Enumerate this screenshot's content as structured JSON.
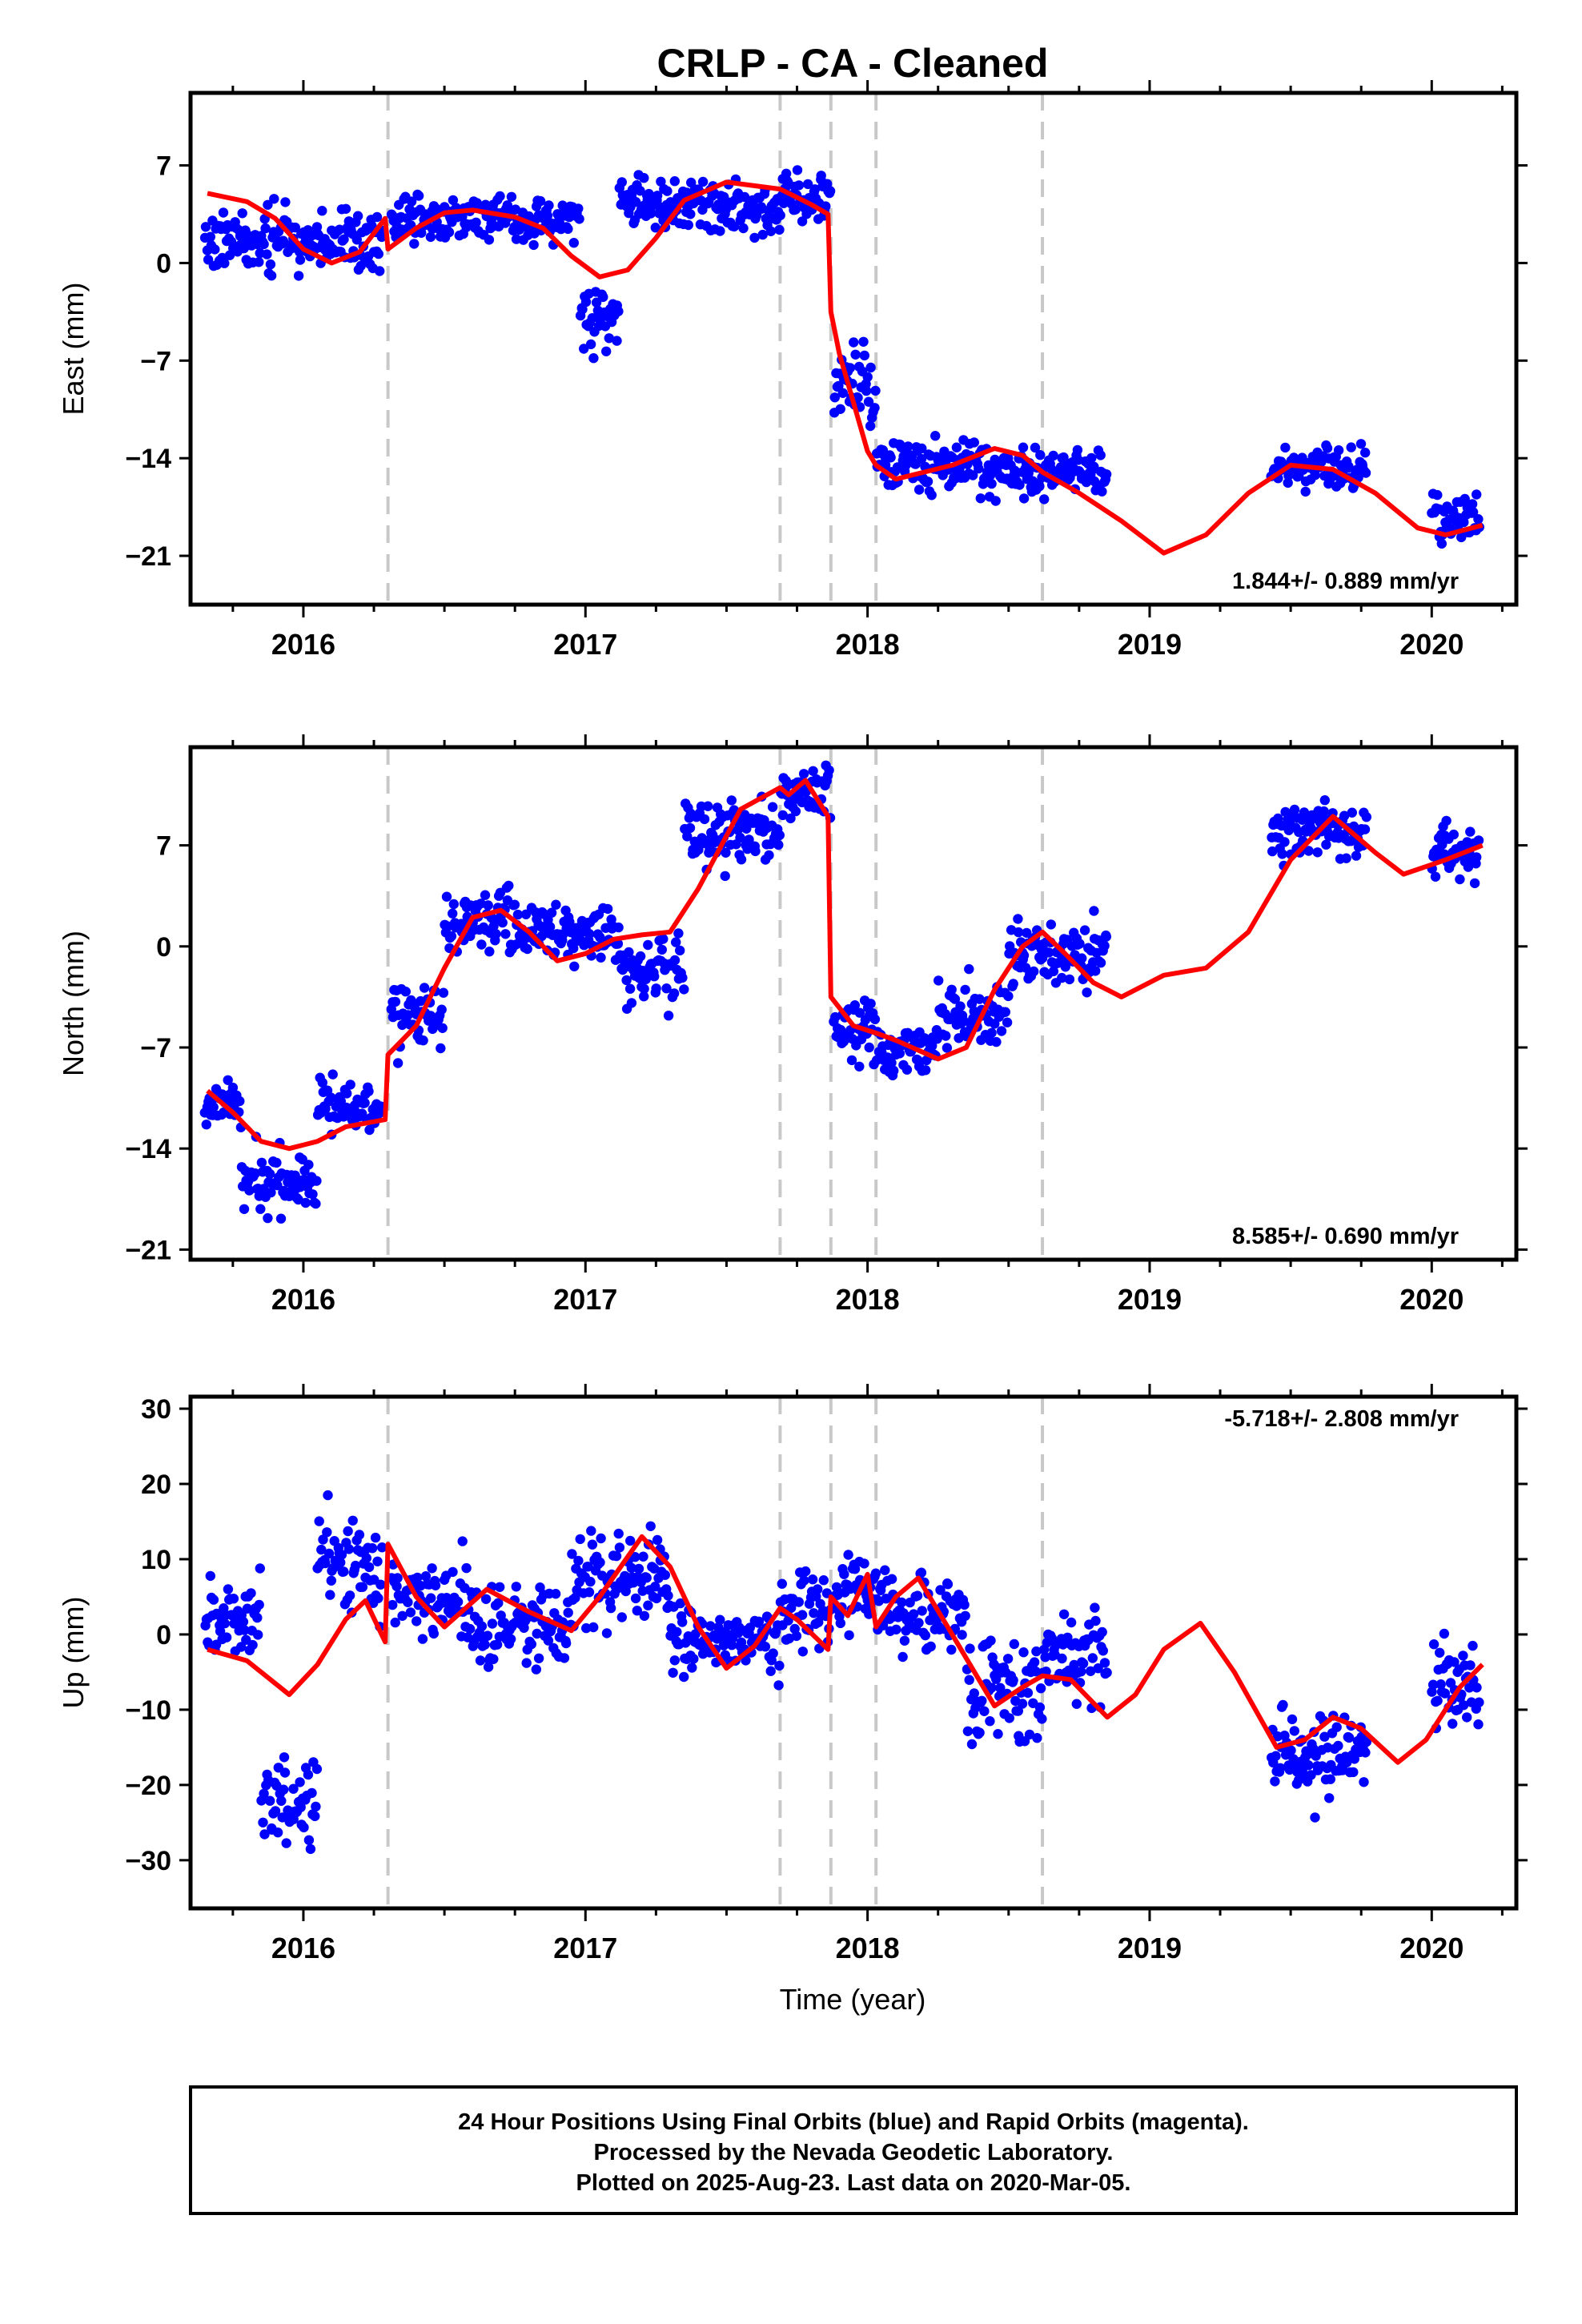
{
  "title": "CRLP  - CA - Cleaned",
  "xlabel": "Time (year)",
  "footer": {
    "line1": "24 Hour Positions Using Final Orbits (blue) and Rapid Orbits (magenta).",
    "line2": "Processed by the Nevada Geodetic Laboratory.",
    "line3": "Plotted on 2025-Aug-23. Last data on 2020-Mar-05."
  },
  "colors": {
    "points": "#0000ff",
    "model": "#ff0000",
    "breaks": "#c8c8c8"
  },
  "chart_data": [
    {
      "type": "scatter",
      "component": "east",
      "ylabel": "East (mm)",
      "rate_text": "1.844+/- 0.889 mm/yr",
      "xlim": [
        2015.6,
        2020.3
      ],
      "ylim": [
        -24.5,
        12.2
      ],
      "xticks": [
        2016,
        2017,
        2018,
        2019,
        2020
      ],
      "yticks": [
        -21,
        -14,
        -7,
        0,
        7
      ],
      "ytick_labels": [
        "−21",
        "−14",
        "−7",
        "0",
        "7"
      ],
      "breaks": [
        2016.3,
        2017.69,
        2017.87,
        2018.03,
        2018.62
      ],
      "model": [
        [
          2015.66,
          5.0
        ],
        [
          2015.8,
          4.4
        ],
        [
          2015.9,
          3.2
        ],
        [
          2016.0,
          1.0
        ],
        [
          2016.1,
          0.0
        ],
        [
          2016.2,
          0.8
        ],
        [
          2016.29,
          3.2
        ],
        [
          2016.3,
          1.0
        ],
        [
          2016.4,
          2.5
        ],
        [
          2016.5,
          3.6
        ],
        [
          2016.6,
          3.8
        ],
        [
          2016.75,
          3.3
        ],
        [
          2016.85,
          2.5
        ],
        [
          2016.95,
          0.5
        ],
        [
          2017.05,
          -1.0
        ],
        [
          2017.15,
          -0.5
        ],
        [
          2017.25,
          1.8
        ],
        [
          2017.35,
          4.5
        ],
        [
          2017.5,
          5.8
        ],
        [
          2017.69,
          5.3
        ],
        [
          2017.8,
          4.2
        ],
        [
          2017.86,
          3.5
        ],
        [
          2017.87,
          -3.5
        ],
        [
          2017.9,
          -6.5
        ],
        [
          2017.95,
          -10.0
        ],
        [
          2018.0,
          -13.5
        ],
        [
          2018.03,
          -14.5
        ],
        [
          2018.1,
          -15.5
        ],
        [
          2018.2,
          -15.0
        ],
        [
          2018.3,
          -14.5
        ],
        [
          2018.45,
          -13.3
        ],
        [
          2018.55,
          -13.8
        ],
        [
          2018.62,
          -15.0
        ],
        [
          2018.75,
          -16.5
        ],
        [
          2018.9,
          -18.5
        ],
        [
          2019.05,
          -20.8
        ],
        [
          2019.2,
          -19.5
        ],
        [
          2019.35,
          -16.5
        ],
        [
          2019.5,
          -14.5
        ],
        [
          2019.65,
          -14.8
        ],
        [
          2019.8,
          -16.5
        ],
        [
          2019.95,
          -19.0
        ],
        [
          2020.05,
          -19.5
        ],
        [
          2020.18,
          -18.8
        ]
      ],
      "segments": [
        [
          2015.65,
          2016.28,
          1.5,
          2.8
        ],
        [
          2016.31,
          2016.98,
          3.2,
          2.0
        ],
        [
          2016.98,
          2017.12,
          -3.5,
          3.5
        ],
        [
          2017.12,
          2017.69,
          4.0,
          2.5
        ],
        [
          2017.69,
          2017.87,
          4.8,
          2.0
        ],
        [
          2017.88,
          2018.03,
          -9.0,
          4.5
        ],
        [
          2018.03,
          2018.4,
          -14.5,
          2.2
        ],
        [
          2018.4,
          2018.85,
          -15.0,
          2.2
        ],
        [
          2019.43,
          2019.77,
          -14.8,
          2.0
        ],
        [
          2020.0,
          2020.17,
          -18.3,
          2.0
        ]
      ]
    },
    {
      "type": "scatter",
      "component": "north",
      "ylabel": "North (mm)",
      "rate_text": "8.585+/- 0.690 mm/yr",
      "xlim": [
        2015.6,
        2020.3
      ],
      "ylim": [
        -21.7,
        13.8
      ],
      "xticks": [
        2016,
        2017,
        2018,
        2019,
        2020
      ],
      "yticks": [
        -21,
        -14,
        -7,
        0,
        7
      ],
      "ytick_labels": [
        "−21",
        "−14",
        "−7",
        "0",
        "7"
      ],
      "breaks": [
        2016.3,
        2017.69,
        2017.87,
        2018.03,
        2018.62
      ],
      "model": [
        [
          2015.66,
          -10.0
        ],
        [
          2015.75,
          -11.5
        ],
        [
          2015.85,
          -13.5
        ],
        [
          2015.95,
          -14.0
        ],
        [
          2016.05,
          -13.5
        ],
        [
          2016.15,
          -12.5
        ],
        [
          2016.29,
          -12.0
        ],
        [
          2016.3,
          -7.5
        ],
        [
          2016.4,
          -5.5
        ],
        [
          2016.5,
          -1.5
        ],
        [
          2016.6,
          2.0
        ],
        [
          2016.7,
          2.5
        ],
        [
          2016.8,
          1.0
        ],
        [
          2016.9,
          -1.0
        ],
        [
          2017.0,
          -0.5
        ],
        [
          2017.1,
          0.5
        ],
        [
          2017.2,
          0.8
        ],
        [
          2017.3,
          1.0
        ],
        [
          2017.4,
          4.0
        ],
        [
          2017.55,
          9.5
        ],
        [
          2017.69,
          11.0
        ],
        [
          2017.72,
          10.5
        ],
        [
          2017.78,
          11.5
        ],
        [
          2017.86,
          9.0
        ],
        [
          2017.87,
          -3.5
        ],
        [
          2017.95,
          -5.5
        ],
        [
          2018.03,
          -6.0
        ],
        [
          2018.1,
          -6.5
        ],
        [
          2018.25,
          -7.8
        ],
        [
          2018.35,
          -7.0
        ],
        [
          2018.45,
          -3.0
        ],
        [
          2018.55,
          0.0
        ],
        [
          2018.62,
          1.0
        ],
        [
          2018.7,
          -0.5
        ],
        [
          2018.8,
          -2.5
        ],
        [
          2018.9,
          -3.5
        ],
        [
          2019.05,
          -2.0
        ],
        [
          2019.2,
          -1.5
        ],
        [
          2019.35,
          1.0
        ],
        [
          2019.5,
          6.0
        ],
        [
          2019.65,
          9.0
        ],
        [
          2019.8,
          6.5
        ],
        [
          2019.9,
          5.0
        ],
        [
          2020.05,
          6.0
        ],
        [
          2020.18,
          7.0
        ]
      ],
      "segments": [
        [
          2015.65,
          2015.78,
          -10.8,
          2.0
        ],
        [
          2015.78,
          2016.05,
          -15.8,
          3.0
        ],
        [
          2016.05,
          2016.28,
          -11.0,
          2.5
        ],
        [
          2016.31,
          2016.5,
          -5.0,
          3.0
        ],
        [
          2016.5,
          2016.8,
          1.8,
          3.0
        ],
        [
          2016.8,
          2017.12,
          1.0,
          3.0
        ],
        [
          2017.12,
          2017.35,
          -1.5,
          3.0
        ],
        [
          2017.35,
          2017.69,
          8.0,
          3.0
        ],
        [
          2017.69,
          2017.87,
          10.5,
          2.5
        ],
        [
          2017.88,
          2018.03,
          -5.5,
          3.0
        ],
        [
          2018.03,
          2018.25,
          -7.0,
          2.5
        ],
        [
          2018.25,
          2018.5,
          -4.5,
          3.0
        ],
        [
          2018.5,
          2018.85,
          -0.5,
          3.0
        ],
        [
          2019.43,
          2019.77,
          8.0,
          2.5
        ],
        [
          2020.0,
          2020.17,
          6.5,
          2.5
        ]
      ]
    },
    {
      "type": "scatter",
      "component": "up",
      "ylabel": "Up (mm)",
      "rate_text": "-5.718+/- 2.808 mm/yr",
      "xlim": [
        2015.6,
        2020.3
      ],
      "ylim": [
        -36.4,
        31.6
      ],
      "xticks": [
        2016,
        2017,
        2018,
        2019,
        2020
      ],
      "yticks": [
        -30,
        -20,
        -10,
        0,
        10,
        20,
        30
      ],
      "ytick_labels": [
        "−30",
        "−20",
        "−10",
        "0",
        "10",
        "20",
        "30"
      ],
      "breaks": [
        2016.3,
        2017.69,
        2017.87,
        2018.03,
        2018.62
      ],
      "model": [
        [
          2015.66,
          -2.0
        ],
        [
          2015.8,
          -3.5
        ],
        [
          2015.95,
          -8.0
        ],
        [
          2016.05,
          -4.0
        ],
        [
          2016.15,
          2.0
        ],
        [
          2016.22,
          4.5
        ],
        [
          2016.29,
          -1.0
        ],
        [
          2016.3,
          12.0
        ],
        [
          2016.4,
          5.0
        ],
        [
          2016.5,
          1.0
        ],
        [
          2016.65,
          6.0
        ],
        [
          2016.8,
          3.0
        ],
        [
          2016.95,
          0.5
        ],
        [
          2017.05,
          5.0
        ],
        [
          2017.2,
          13.0
        ],
        [
          2017.3,
          9.0
        ],
        [
          2017.4,
          1.0
        ],
        [
          2017.5,
          -4.5
        ],
        [
          2017.6,
          -1.5
        ],
        [
          2017.69,
          3.5
        ],
        [
          2017.75,
          2.0
        ],
        [
          2017.86,
          -2.0
        ],
        [
          2017.87,
          5.0
        ],
        [
          2017.93,
          2.5
        ],
        [
          2018.0,
          8.0
        ],
        [
          2018.03,
          1.0
        ],
        [
          2018.1,
          5.0
        ],
        [
          2018.18,
          7.5
        ],
        [
          2018.3,
          0.0
        ],
        [
          2018.45,
          -9.5
        ],
        [
          2018.55,
          -7.0
        ],
        [
          2018.62,
          -5.5
        ],
        [
          2018.72,
          -6.0
        ],
        [
          2018.85,
          -11.0
        ],
        [
          2018.95,
          -8.0
        ],
        [
          2019.05,
          -2.0
        ],
        [
          2019.18,
          1.5
        ],
        [
          2019.3,
          -5.0
        ],
        [
          2019.45,
          -15.0
        ],
        [
          2019.55,
          -14.0
        ],
        [
          2019.65,
          -11.0
        ],
        [
          2019.75,
          -12.5
        ],
        [
          2019.88,
          -17.0
        ],
        [
          2019.98,
          -14.0
        ],
        [
          2020.1,
          -7.0
        ],
        [
          2020.18,
          -4.0
        ]
      ],
      "segments": [
        [
          2015.65,
          2015.85,
          2.0,
          7.0
        ],
        [
          2015.85,
          2016.05,
          -22.0,
          8.0
        ],
        [
          2016.05,
          2016.28,
          10.0,
          9.0
        ],
        [
          2016.31,
          2016.6,
          5.0,
          7.0
        ],
        [
          2016.6,
          2016.95,
          1.0,
          7.0
        ],
        [
          2016.95,
          2017.3,
          8.0,
          8.0
        ],
        [
          2017.3,
          2017.69,
          -1.0,
          6.0
        ],
        [
          2017.69,
          2017.87,
          3.0,
          7.0
        ],
        [
          2017.88,
          2018.03,
          6.0,
          7.0
        ],
        [
          2018.03,
          2018.35,
          3.0,
          7.0
        ],
        [
          2018.35,
          2018.62,
          -8.0,
          9.0
        ],
        [
          2018.62,
          2018.85,
          -3.0,
          7.0
        ],
        [
          2019.43,
          2019.77,
          -16.0,
          7.0
        ],
        [
          2020.0,
          2020.17,
          -8.0,
          8.0
        ]
      ]
    }
  ]
}
